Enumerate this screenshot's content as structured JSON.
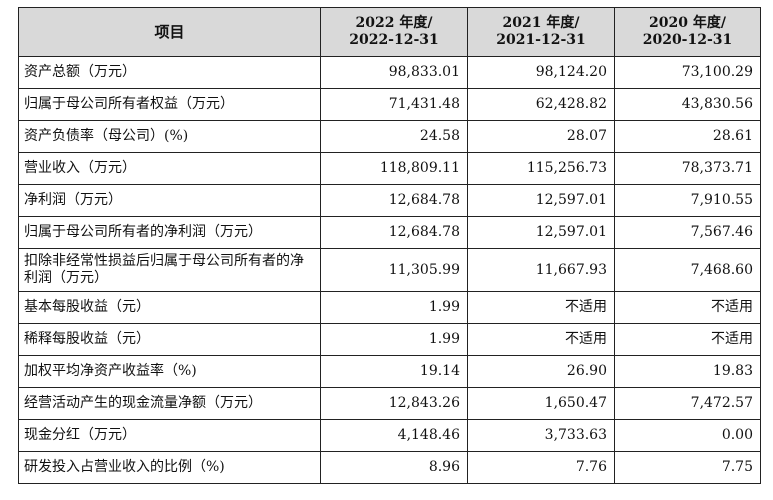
{
  "table": {
    "header": {
      "item": "项目",
      "col2022": {
        "year": "2022 年度/",
        "date": "2022-12-31"
      },
      "col2021": {
        "year": "2021 年度/",
        "date": "2021-12-31"
      },
      "col2020": {
        "year": "2020 年度/",
        "date": "2020-12-31"
      }
    },
    "rows": [
      {
        "label": "资产总额（万元）",
        "v2022": "98,833.01",
        "v2021": "98,124.20",
        "v2020": "73,100.29"
      },
      {
        "label": "归属于母公司所有者权益（万元）",
        "v2022": "71,431.48",
        "v2021": "62,428.82",
        "v2020": "43,830.56"
      },
      {
        "label": "资产负债率（母公司）(%)",
        "v2022": "24.58",
        "v2021": "28.07",
        "v2020": "28.61"
      },
      {
        "label": "营业收入（万元）",
        "v2022": "118,809.11",
        "v2021": "115,256.73",
        "v2020": "78,373.71"
      },
      {
        "label": "净利润（万元）",
        "v2022": "12,684.78",
        "v2021": "12,597.01",
        "v2020": "7,910.55"
      },
      {
        "label": "归属于母公司所有者的净利润（万元）",
        "v2022": "12,684.78",
        "v2021": "12,597.01",
        "v2020": "7,567.46"
      },
      {
        "label": "扣除非经常性损益后归属于母公司所有者的净利润（万元）",
        "v2022": "11,305.99",
        "v2021": "11,667.93",
        "v2020": "7,468.60"
      },
      {
        "label": "基本每股收益（元）",
        "v2022": "1.99",
        "v2021": "不适用",
        "v2020": "不适用"
      },
      {
        "label": "稀释每股收益（元）",
        "v2022": "1.99",
        "v2021": "不适用",
        "v2020": "不适用"
      },
      {
        "label": "加权平均净资产收益率（%)",
        "v2022": "19.14",
        "v2021": "26.90",
        "v2020": "19.83"
      },
      {
        "label": "经营活动产生的现金流量净额（万元）",
        "v2022": "12,843.26",
        "v2021": "1,650.47",
        "v2020": "7,472.57"
      },
      {
        "label": "现金分红（万元）",
        "v2022": "4,148.46",
        "v2021": "3,733.63",
        "v2020": "0.00"
      },
      {
        "label": "研发投入占营业收入的比例（%)",
        "v2022": "8.96",
        "v2021": "7.76",
        "v2020": "7.75"
      }
    ]
  }
}
